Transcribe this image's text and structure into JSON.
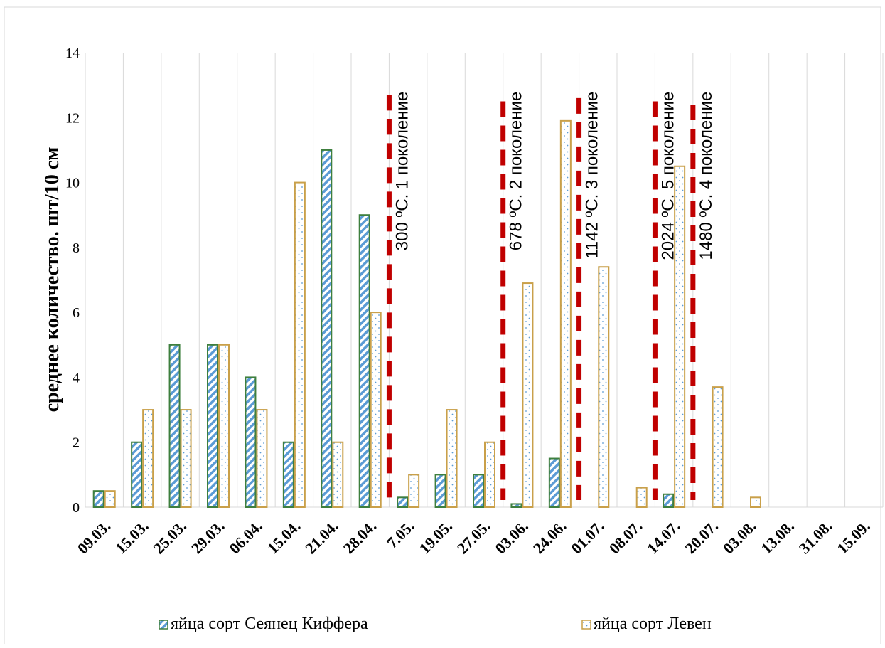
{
  "chart_data": {
    "type": "bar",
    "title": "",
    "xlabel": "",
    "ylabel": "среднее количество. шт/10 см",
    "ylim": [
      0,
      14
    ],
    "yticks": [
      "0",
      "2",
      "4",
      "6",
      "8",
      "10",
      "12",
      "14"
    ],
    "grid": "vertical",
    "legend_position": "bottom",
    "categories": [
      "09.03.",
      "15.03.",
      "25.03.",
      "29.03.",
      "06.04.",
      "15.04.",
      "21.04.",
      "28.04.",
      "7.05.",
      "19.05.",
      "27.05.",
      "03.06.",
      "24.06.",
      "01.07.",
      "08.07.",
      "14.07.",
      "20.07.",
      "03.08.",
      "13.08.",
      "31.08.",
      "15.09."
    ],
    "series": [
      {
        "name": "яйца сорт Сеянец Киффера",
        "color": "#5b9bd5",
        "border": "#3e7f3e",
        "pattern": "diagonal-stripes",
        "values": [
          0.5,
          2,
          5,
          5,
          4,
          2,
          11,
          9,
          0.3,
          1,
          1,
          0.1,
          1.5,
          null,
          null,
          0.4,
          null,
          null,
          null,
          null,
          null
        ]
      },
      {
        "name": "яйца сорт Левен",
        "color": "#5b9bd5",
        "border": "#c9a04a",
        "pattern": "dots",
        "values": [
          0.5,
          3,
          3,
          5,
          3,
          10,
          2,
          6,
          1,
          3,
          2,
          6.9,
          11.9,
          7.4,
          0.6,
          10.5,
          3.7,
          0.3,
          null,
          null,
          null
        ]
      }
    ],
    "annotations": [
      {
        "text": "300 ºС. 1 поколение",
        "line_color": "#c00000",
        "after_category": "28.04.",
        "top_value": 12.7
      },
      {
        "text": "678 ºС. 2 поколение",
        "line_color": "#c00000",
        "after_category": "27.05.",
        "top_value": 12.5
      },
      {
        "text": "1142 ºС. 3 поколение",
        "line_color": "#c00000",
        "after_category": "24.06.",
        "top_value": 12.6
      },
      {
        "text": "1480 ºС. 4 поколение",
        "line_color": "#c00000",
        "after_category": "14.07.",
        "top_value": 12.4
      },
      {
        "text": "2024 ºС. 5 поколение",
        "line_color": "#c00000",
        "after_category": "08.07.",
        "top_value": 12.5
      }
    ]
  }
}
